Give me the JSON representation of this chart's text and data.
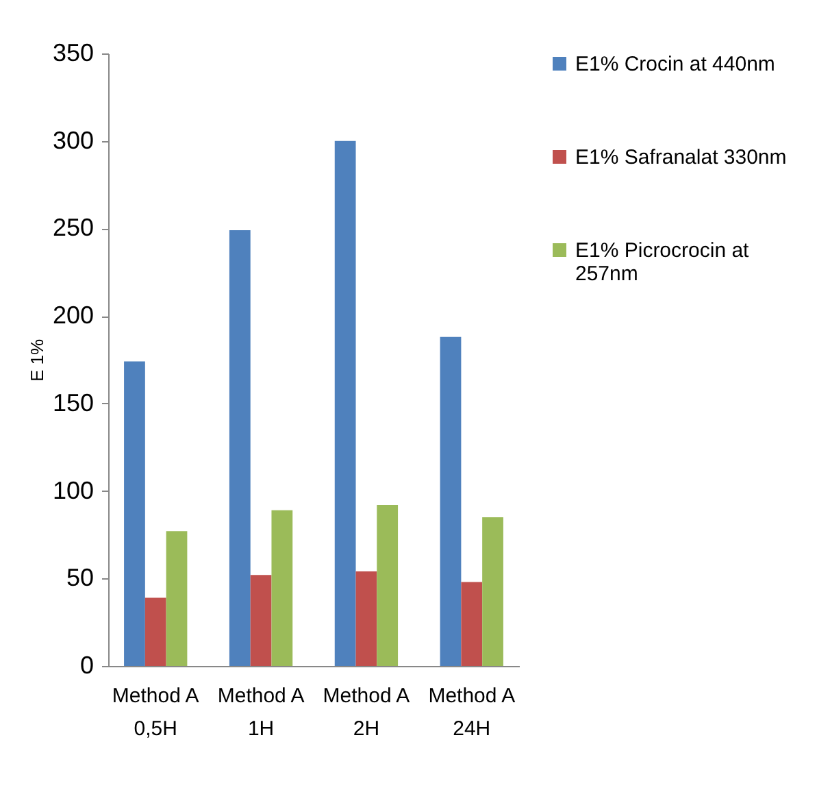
{
  "chart_data": {
    "type": "bar",
    "ylabel": "E 1%",
    "categories": [
      "Method A 0,5H",
      "Method A 1H",
      "Method A 2H",
      "Method A 24H"
    ],
    "series": [
      {
        "name": "E1% Crocin at 440nm",
        "color": "#4f81bd",
        "values": [
          174,
          249,
          300,
          188
        ]
      },
      {
        "name": "E1% Safranalat 330nm",
        "color": "#c0504d",
        "values": [
          39,
          52,
          54,
          48
        ]
      },
      {
        "name": "E1% Picrocrocin at 257nm",
        "color": "#9bbb59",
        "values": [
          77,
          89,
          92,
          85
        ]
      }
    ],
    "ylim": [
      0,
      350
    ],
    "yticks": [
      0,
      50,
      100,
      150,
      200,
      250,
      300,
      350
    ],
    "grid": false,
    "legend": "right"
  }
}
